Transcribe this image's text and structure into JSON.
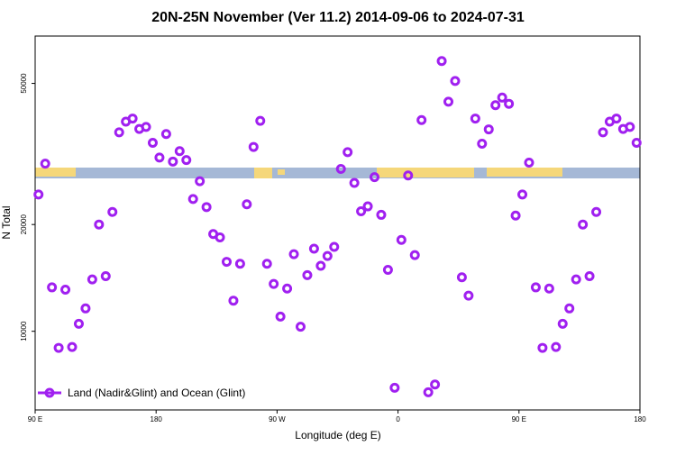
{
  "chart_data": {
    "type": "scatter",
    "title": "20N-25N November (Ver 11.2)   2014-09-06 to 2024-07-31",
    "x_label": "Longitude (deg E)",
    "y_label": "N Total",
    "log_y": true,
    "legend_position": "bottom-left",
    "xlim": [
      90,
      540
    ],
    "xticks": [
      {
        "value": 90,
        "label": "90 E"
      },
      180,
      {
        "value": 270,
        "label": "90 W"
      },
      {
        "value": 360,
        "label": "0"
      },
      {
        "value": 450,
        "label": "90 E"
      },
      {
        "value": 540,
        "label": "180"
      }
    ],
    "ylim": [
      6000,
      68000
    ],
    "yticks": [
      10000,
      20000,
      50000
    ],
    "x": [
      92.5,
      97.5,
      102.5,
      107.5,
      112.5,
      117.5,
      122.5,
      127.5,
      132.5,
      137.5,
      142.5,
      147.5,
      152.5,
      157.5,
      162.5,
      167.5,
      172.5,
      177.5,
      182.5,
      187.5,
      192.5,
      197.5,
      202.5,
      207.5,
      212.5,
      217.5,
      222.5,
      227.5,
      232.5,
      237.5,
      242.5,
      247.5,
      252.5,
      257.5,
      262.5,
      267.5,
      272.5,
      277.5,
      282.5,
      287.5,
      292.5,
      297.5,
      302.5,
      307.5,
      312.5,
      317.5,
      322.5,
      327.5,
      332.5,
      337.5,
      342.5,
      347.5,
      352.5,
      357.5,
      362.5,
      367.5,
      372.5,
      377.5,
      382.5,
      387.5,
      392.5,
      397.5,
      402.5,
      407.5,
      412.5,
      417.5,
      422.5,
      427.5,
      432.5,
      437.5,
      442.5,
      447.5,
      452.5,
      457.5,
      462.5,
      467.5,
      472.5,
      477.5,
      482.5,
      487.5,
      492.5,
      497.5,
      502.5,
      507.5,
      512.5,
      517.5,
      522.5,
      527.5,
      532.5,
      537.5
    ],
    "series": [
      {
        "name": "Land (Nadir&Glint) and Ocean (Glint)",
        "color": "#a020f0",
        "values": [
          24300,
          29700,
          13300,
          8980,
          13100,
          9030,
          10500,
          11600,
          14000,
          20000,
          14300,
          21700,
          36400,
          39000,
          39800,
          37200,
          37700,
          34000,
          30900,
          36000,
          30100,
          32200,
          30400,
          23600,
          26500,
          22400,
          18800,
          18400,
          15700,
          12200,
          15500,
          22800,
          33100,
          39200,
          15500,
          13600,
          11000,
          13200,
          16500,
          10300,
          14400,
          17100,
          15300,
          16300,
          17300,
          28700,
          32000,
          26200,
          21800,
          22500,
          27200,
          21300,
          14900,
          6930,
          18100,
          27500,
          16400,
          39400,
          6730,
          7080,
          57800,
          44400,
          50800,
          14200,
          12600,
          39800,
          33800,
          37100,
          43400,
          45600,
          43800,
          21200,
          24300,
          29900,
          13300,
          8980,
          13200,
          9030,
          10500,
          11600,
          14000,
          20000,
          14300,
          21700,
          36400,
          39000,
          39800,
          37200,
          37700,
          34000
        ]
      }
    ]
  }
}
